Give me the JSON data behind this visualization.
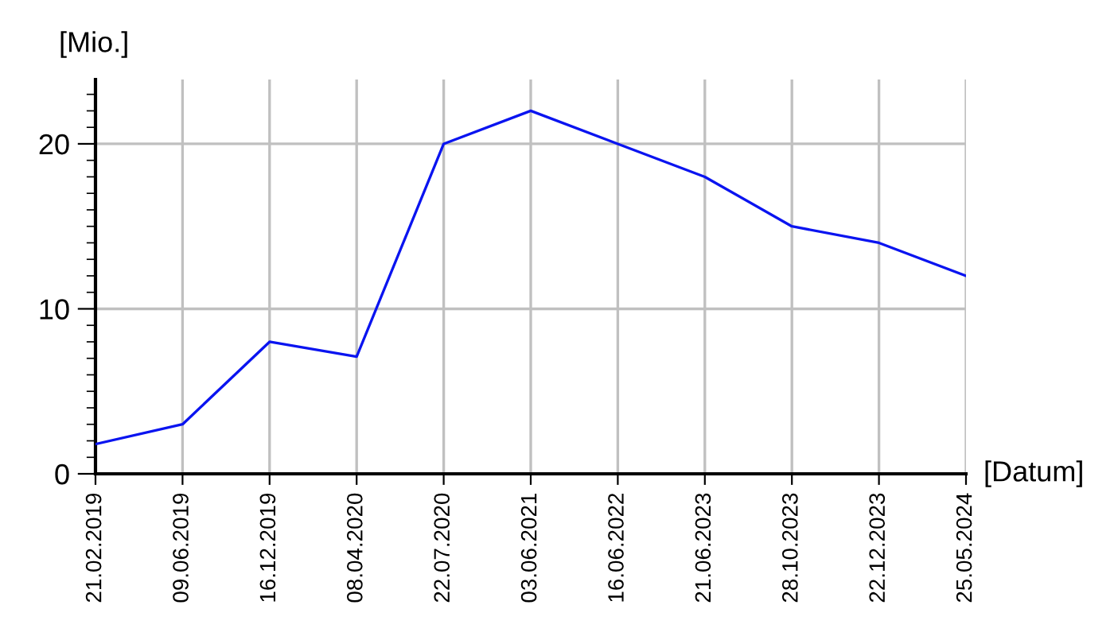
{
  "chart_data": {
    "type": "line",
    "ylabel": "[Mio.]",
    "xlabel": "[Datum]",
    "categories": [
      "21.02.2019",
      "09.06.2019",
      "16.12.2019",
      "08.04.2020",
      "22.07.2020",
      "03.06.2021",
      "16.06.2022",
      "21.06.2023",
      "28.10.2023",
      "22.12.2023",
      "25.05.2024"
    ],
    "series": [
      {
        "color": "#0a14f0",
        "values": [
          1.8,
          3,
          8,
          7.1,
          20,
          22,
          20,
          18,
          15,
          14,
          12
        ]
      }
    ],
    "ylim": [
      0,
      23.9
    ],
    "yticks": [
      0,
      10,
      20
    ],
    "grid": true,
    "marker": "none",
    "line_style": "solid",
    "legend": false
  }
}
